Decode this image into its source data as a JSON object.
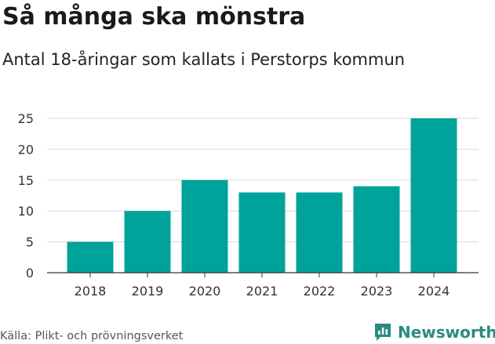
{
  "header": {
    "title": "Så många ska mönstra",
    "subtitle": "Antal 18-åringar som kallats i Perstorps kommun"
  },
  "footer": {
    "source": "Källa: Plikt- och prövningsverket",
    "brand": "Newsworthy"
  },
  "colors": {
    "bar": "#00a39a",
    "grid": "#d9d9d9",
    "axis": "#333333",
    "brand": "#2a8a84"
  },
  "icons": {
    "brand": "chat-bubble-bar-chart-icon"
  },
  "chart_data": {
    "type": "bar",
    "title": "Så många ska mönstra",
    "subtitle": "Antal 18-åringar som kallats i Perstorps kommun",
    "categories": [
      "2018",
      "2019",
      "2020",
      "2021",
      "2022",
      "2023",
      "2024"
    ],
    "values": [
      5,
      10,
      15,
      13,
      13,
      14,
      25
    ],
    "ylim": [
      0,
      25
    ],
    "yticks": [
      0,
      5,
      10,
      15,
      20,
      25
    ],
    "grid": true,
    "legend": "none"
  }
}
